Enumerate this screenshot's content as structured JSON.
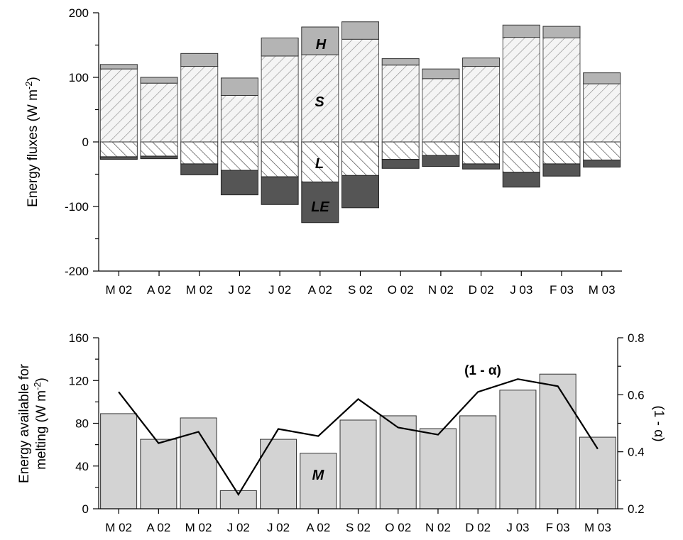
{
  "chart_data": [
    {
      "type": "bar",
      "subtype": "stacked",
      "categories": [
        "M 02",
        "A 02",
        "M 02",
        "J 02",
        "J 02",
        "A 02",
        "S 02",
        "O 02",
        "N 02",
        "D 02",
        "J 03",
        "F 03",
        "M 03"
      ],
      "ylabel": "Energy fluxes (W m-2)",
      "ylabel_parts": {
        "main": "Energy fluxes (W m",
        "sup": "-2",
        "end": ")"
      },
      "ylim": [
        -200,
        200
      ],
      "yticks": [
        -200,
        -100,
        0,
        100,
        200
      ],
      "grid": false,
      "legend": "none",
      "series": [
        {
          "name": "S",
          "values": [
            113,
            91,
            117,
            72,
            133,
            135,
            159,
            119,
            98,
            117,
            162,
            161,
            90
          ],
          "color": "#e6e6e6",
          "pattern": "hatch-forward"
        },
        {
          "name": "H",
          "values": [
            7,
            9,
            20,
            27,
            28,
            43,
            27,
            10,
            15,
            13,
            19,
            18,
            17
          ],
          "color": "#b4b4b4"
        },
        {
          "name": "L",
          "values": [
            -23,
            -22,
            -34,
            -44,
            -54,
            -62,
            -52,
            -27,
            -21,
            -34,
            -47,
            -34,
            -28
          ],
          "color": "#ffffff",
          "pattern": "hatch-back"
        },
        {
          "name": "LE",
          "values": [
            -4,
            -4,
            -17,
            -38,
            -43,
            -63,
            -50,
            -14,
            -17,
            -8,
            -23,
            -19,
            -11
          ],
          "color": "#555555"
        }
      ],
      "annotations": [
        {
          "text": "H",
          "category_index": 5
        },
        {
          "text": "S",
          "category_index": 5
        },
        {
          "text": "L",
          "category_index": 5
        },
        {
          "text": "LE",
          "category_index": 5
        }
      ]
    },
    {
      "type": "bar+line",
      "categories": [
        "M 02",
        "A 02",
        "M 02",
        "J 02",
        "J 02",
        "A 02",
        "S 02",
        "O 02",
        "N 02",
        "D 02",
        "J 03",
        "F 03",
        "M 03"
      ],
      "ylabel": "Energy available for melting (W m-2)",
      "ylabel_parts": {
        "line1": "Energy available for",
        "line2_main": "melting (W m",
        "line2_sup": "-2",
        "line2_end": ")"
      },
      "ylim": [
        0,
        160
      ],
      "yticks": [
        0,
        40,
        80,
        120,
        160
      ],
      "y2label": "(1 - α)",
      "y2lim": [
        0.2,
        0.8
      ],
      "y2ticks": [
        0.2,
        0.4,
        0.6,
        0.8
      ],
      "grid": false,
      "legend": "none",
      "series": [
        {
          "name": "M",
          "type": "bar",
          "axis": "left",
          "values": [
            89,
            65,
            85,
            17,
            65,
            52,
            83,
            87,
            75,
            87,
            111,
            126,
            67
          ],
          "color": "#d3d3d3"
        },
        {
          "name": "(1 - α)",
          "type": "line",
          "axis": "right",
          "values": [
            0.61,
            0.43,
            0.47,
            0.25,
            0.48,
            0.455,
            0.585,
            0.485,
            0.46,
            0.61,
            0.655,
            0.63,
            0.41
          ],
          "color": "#000000"
        }
      ],
      "annotations": [
        {
          "text": "M",
          "category_index": 5
        },
        {
          "text": "(1 - α)",
          "category_index": 10
        }
      ]
    }
  ]
}
